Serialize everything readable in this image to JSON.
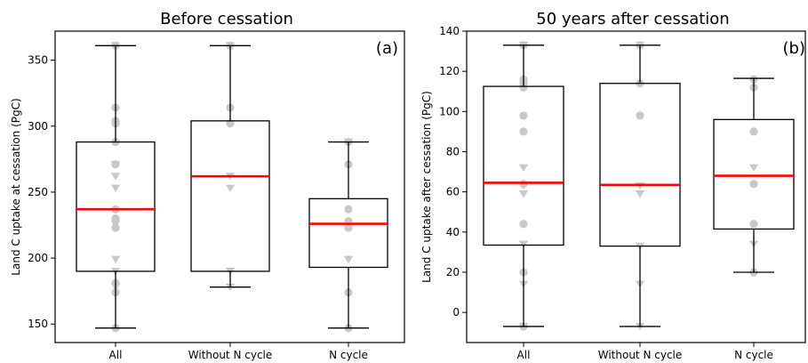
{
  "chart_data": [
    {
      "type": "box",
      "title": "Before cessation",
      "panel_label": "(a)",
      "xlabel": "",
      "ylabel": "Land C uptake at cessation (PgC)",
      "ylim": [
        136,
        372
      ],
      "yticks": [
        150,
        200,
        250,
        300,
        350
      ],
      "categories": [
        "All",
        "Without N cycle",
        "N cycle"
      ],
      "boxes": [
        {
          "whisker_low": 147,
          "q1": 190,
          "median": 237,
          "q3": 288,
          "whisker_high": 361
        },
        {
          "whisker_low": 178,
          "q1": 190,
          "median": 262,
          "q3": 304,
          "whisker_high": 361
        },
        {
          "whisker_low": 147,
          "q1": 193,
          "median": 226,
          "q3": 245,
          "whisker_high": 288
        }
      ],
      "points": [
        {
          "category": "All",
          "circles": [
            361,
            314,
            304,
            302,
            288,
            271,
            237,
            230,
            228,
            223,
            181,
            174,
            147
          ],
          "triangles": [
            361,
            271,
            262,
            253,
            199,
            190,
            178
          ]
        },
        {
          "category": "Without N cycle",
          "circles": [
            361,
            314,
            302
          ],
          "triangles": [
            361,
            262,
            253,
            190,
            178
          ]
        },
        {
          "category": "N cycle",
          "circles": [
            288,
            271,
            237,
            228,
            223,
            174,
            147
          ],
          "triangles": [
            288,
            199
          ]
        }
      ],
      "colors": {
        "box": "#000000",
        "median": "#ff0000",
        "points": "#c8c8c8"
      }
    },
    {
      "type": "box",
      "title": "50 years after cessation",
      "panel_label": "(b)",
      "xlabel": "",
      "ylabel": "Land C uptake after cessation (PgC)",
      "ylim": [
        -15,
        140
      ],
      "yticks": [
        0,
        20,
        40,
        60,
        80,
        100,
        120,
        140
      ],
      "categories": [
        "All",
        "Without N cycle",
        "N cycle"
      ],
      "boxes": [
        {
          "whisker_low": -7,
          "q1": 33.5,
          "median": 64.5,
          "q3": 112.5,
          "whisker_high": 133
        },
        {
          "whisker_low": -7,
          "q1": 33,
          "median": 63.5,
          "q3": 114,
          "whisker_high": 133
        },
        {
          "whisker_low": 20,
          "q1": 41.5,
          "median": 68,
          "q3": 96,
          "whisker_high": 116.5
        }
      ],
      "points": [
        {
          "category": "All",
          "circles": [
            133,
            116,
            114,
            112,
            98,
            90,
            64,
            44,
            20,
            -7
          ],
          "triangles": [
            133,
            72,
            63,
            59,
            34,
            14,
            -7
          ]
        },
        {
          "category": "Without N cycle",
          "circles": [
            133,
            114,
            98
          ],
          "triangles": [
            133,
            63,
            59,
            33,
            14,
            -7
          ]
        },
        {
          "category": "N cycle",
          "circles": [
            116,
            112,
            90,
            64,
            44,
            20
          ],
          "triangles": [
            72,
            34
          ]
        }
      ],
      "colors": {
        "box": "#000000",
        "median": "#ff0000",
        "points": "#c8c8c8"
      }
    }
  ]
}
